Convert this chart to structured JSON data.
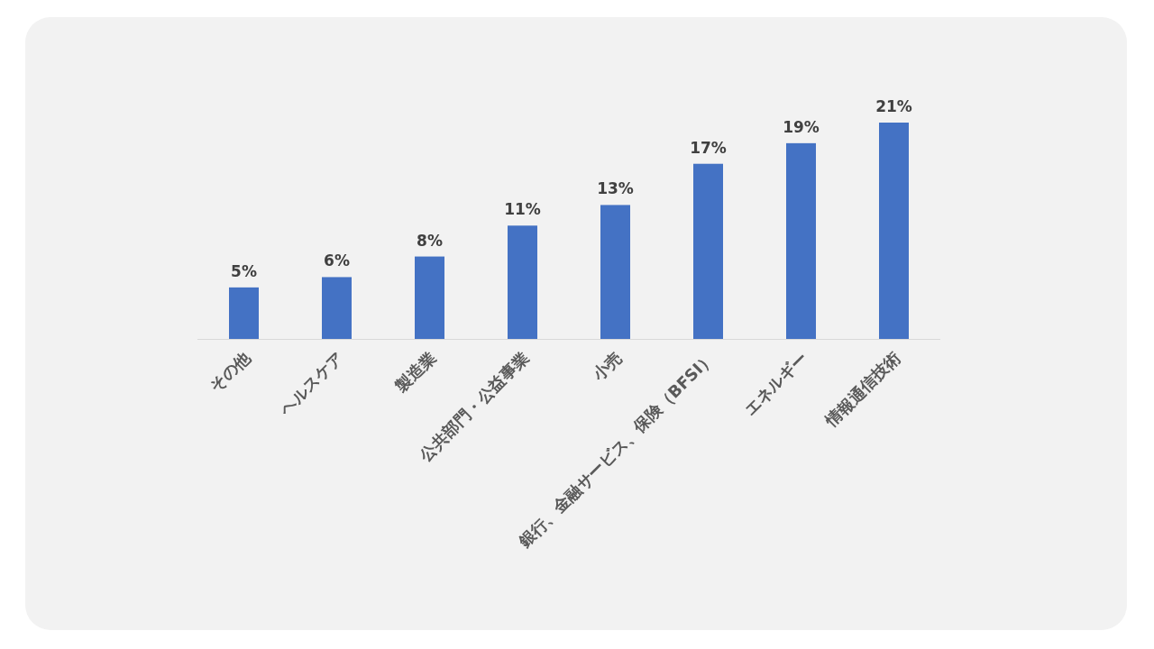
{
  "chart_data": {
    "type": "bar",
    "categories": [
      "その他",
      "ヘルスケア",
      "製造業",
      "公共部門・公益事業",
      "小売",
      "銀行、金融サービス、保険（BFSI）",
      "エネルギー",
      "情報通信技術"
    ],
    "values": [
      5,
      6,
      8,
      11,
      13,
      17,
      19,
      21
    ],
    "value_labels": [
      "5%",
      "6%",
      "8%",
      "11%",
      "13%",
      "17%",
      "19%",
      "21%"
    ],
    "color": "#4472c4"
  }
}
